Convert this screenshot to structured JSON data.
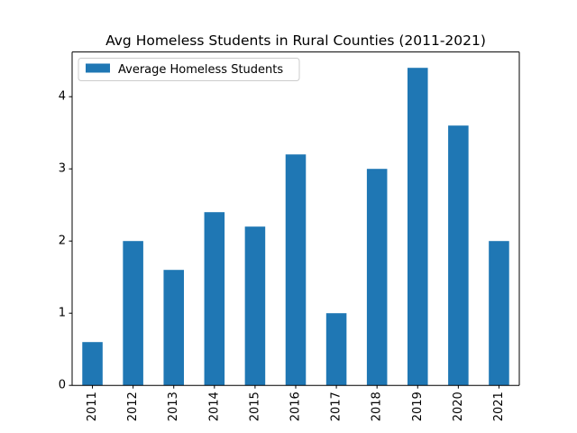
{
  "chart_data": {
    "type": "bar",
    "title": "Avg Homeless Students in Rural Counties (2011-2021)",
    "xlabel": "",
    "ylabel": "",
    "categories": [
      "2011",
      "2012",
      "2013",
      "2014",
      "2015",
      "2016",
      "2017",
      "2018",
      "2019",
      "2020",
      "2021"
    ],
    "series": [
      {
        "name": "Average Homeless Students",
        "values": [
          0.6,
          2.0,
          1.6,
          2.4,
          2.2,
          3.2,
          1.0,
          3.0,
          4.4,
          3.6,
          2.0
        ],
        "color": "#1f77b4"
      }
    ],
    "ylim": [
      0,
      4.62
    ],
    "yticks": [
      "0",
      "1",
      "2",
      "3",
      "4"
    ],
    "grid": false,
    "legend": "top-left"
  }
}
